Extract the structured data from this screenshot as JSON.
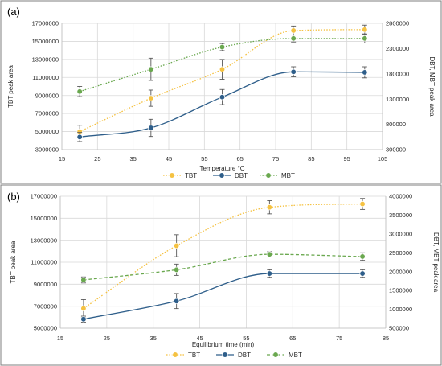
{
  "colors": {
    "TBT": "#f5c242",
    "DBT": "#2e5e8a",
    "MBT": "#6aa84f",
    "grid": "#d9d9d9",
    "error_bar": "#595959"
  },
  "chart_data": [
    {
      "panel_label": "(a)",
      "type": "line",
      "xlabel": "Temperature °C",
      "ylabel": "TBT peak area",
      "y2label": "DBT, MBT peak area",
      "xlim": [
        15,
        105
      ],
      "xticks": [
        15,
        25,
        35,
        45,
        55,
        65,
        75,
        85,
        95,
        105
      ],
      "ylim": [
        3000000,
        17000000
      ],
      "yticks": [
        3000000,
        5000000,
        7000000,
        9000000,
        11000000,
        13000000,
        15000000,
        17000000
      ],
      "y2lim": [
        300000,
        2800000
      ],
      "y2ticks": [
        300000,
        800000,
        1300000,
        1800000,
        2300000,
        2800000
      ],
      "grid": true,
      "legend_position": "bottom",
      "legend": [
        "TBT",
        "DBT",
        "MBT"
      ],
      "series": [
        {
          "name": "TBT",
          "axis": "left",
          "style": "dotted",
          "x": [
            20,
            40,
            60,
            80,
            100
          ],
          "y": [
            5000000,
            8700000,
            11900000,
            16200000,
            16300000
          ],
          "err": [
            700000,
            900000,
            1100000,
            500000,
            500000
          ]
        },
        {
          "name": "DBT",
          "axis": "right",
          "style": "solid",
          "x": [
            20,
            40,
            60,
            80,
            100
          ],
          "y": [
            550000,
            730000,
            1340000,
            1840000,
            1830000
          ],
          "err": [
            90000,
            170000,
            150000,
            100000,
            110000
          ]
        },
        {
          "name": "MBT",
          "axis": "right",
          "style": "dotted",
          "x": [
            20,
            40,
            60,
            80,
            100
          ],
          "y": [
            1450000,
            1890000,
            2330000,
            2500000,
            2500000
          ],
          "err": [
            100000,
            220000,
            70000,
            70000,
            90000
          ]
        }
      ]
    },
    {
      "panel_label": "(b)",
      "type": "line",
      "xlabel": "Equilibrium time (min)",
      "ylabel": "TBT peak area",
      "y2label": "DBT, MBT peak area",
      "xlim": [
        15,
        85
      ],
      "xticks": [
        15,
        25,
        35,
        45,
        55,
        65,
        75,
        85
      ],
      "ylim": [
        5000000,
        17000000
      ],
      "yticks": [
        5000000,
        7000000,
        9000000,
        11000000,
        13000000,
        15000000,
        17000000
      ],
      "y2lim": [
        500000,
        4000000
      ],
      "y2ticks": [
        500000,
        1000000,
        1500000,
        2000000,
        2500000,
        3000000,
        3500000,
        4000000
      ],
      "grid": true,
      "legend_position": "bottom",
      "legend": [
        "TBT",
        "DBT",
        "MBT"
      ],
      "series": [
        {
          "name": "TBT",
          "axis": "left",
          "style": "dotted",
          "x": [
            20,
            40,
            60,
            80
          ],
          "y": [
            6800000,
            12500000,
            16000000,
            16300000
          ],
          "err": [
            800000,
            1000000,
            600000,
            500000
          ]
        },
        {
          "name": "DBT",
          "axis": "right",
          "style": "solid",
          "x": [
            20,
            40,
            60,
            80
          ],
          "y": [
            740000,
            1220000,
            1950000,
            1950000
          ],
          "err": [
            80000,
            200000,
            100000,
            100000
          ]
        },
        {
          "name": "MBT",
          "axis": "right",
          "style": "dashed",
          "x": [
            20,
            40,
            60,
            80
          ],
          "y": [
            1780000,
            2050000,
            2460000,
            2400000
          ],
          "err": [
            80000,
            150000,
            70000,
            100000
          ]
        }
      ]
    }
  ]
}
